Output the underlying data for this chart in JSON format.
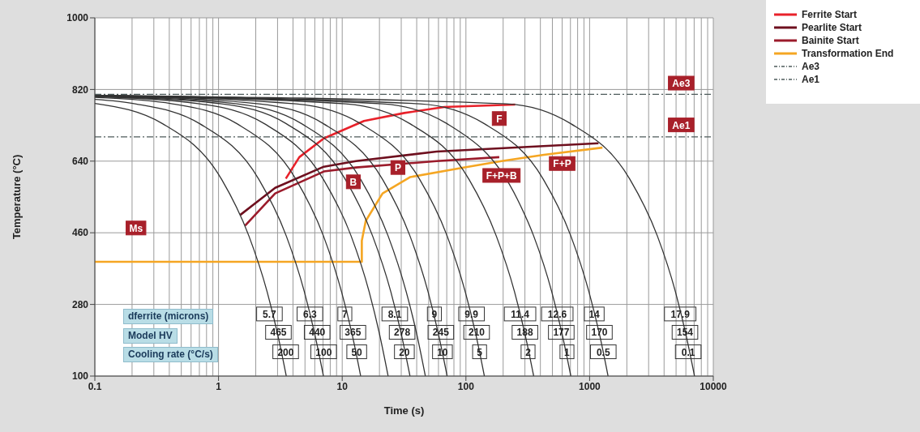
{
  "chart_data": {
    "type": "line",
    "xlabel": "Time (s)",
    "ylabel": "Temperature (°C)",
    "log": "x",
    "grid": true,
    "legend": "top right",
    "marker": "none",
    "xlim": [
      0.1,
      10000
    ],
    "xticks": [
      0.1,
      1,
      10,
      100,
      1000,
      10000
    ],
    "ylim": [
      100,
      1000
    ],
    "yticks": [
      100,
      280,
      460,
      640,
      820,
      1000
    ],
    "series": [
      {
        "name": "Ferrite Start",
        "color": "#e8212a",
        "line_style": "solid",
        "x": [
          3.5,
          4.5,
          7.1,
          15,
          31.8,
          67,
          250
        ],
        "values": [
          596,
          650,
          697,
          741,
          761,
          776,
          782
        ]
      },
      {
        "name": "Pearlite Start",
        "color": "#6e0f1e",
        "line_style": "solid",
        "x": [
          1.5,
          2.87,
          7.1,
          12.9,
          58,
          1180
        ],
        "values": [
          505,
          573,
          626,
          640,
          664,
          685
        ]
      },
      {
        "name": "Bainite Start",
        "color": "#9b1b2b",
        "line_style": "solid",
        "x": [
          1.64,
          2.87,
          7.1,
          12.9,
          58,
          186
        ],
        "values": [
          478,
          559,
          614,
          624,
          640,
          650
        ]
      },
      {
        "name": "Transformation End",
        "color": "#f5a623",
        "line_style": "solid",
        "x": [
          0.1,
          14.4,
          14.4,
          15.5,
          21.2,
          35.5,
          95.7,
          194,
          427,
          1270
        ],
        "values": [
          387,
          387,
          440,
          490,
          559,
          600,
          624,
          640,
          656,
          674
        ]
      },
      {
        "name": "Ae3",
        "color": "#4d5b5b",
        "line_style": "dashed",
        "x": [
          0.1,
          10000
        ],
        "values": [
          808,
          808
        ]
      },
      {
        "name": "Ae1",
        "color": "#4d5b5b",
        "line_style": "dashed",
        "x": [
          0.1,
          10000
        ],
        "values": [
          701,
          701
        ]
      },
      {
        "color": "#333333",
        "line_style": "solid",
        "x": [
          0.1,
          0.353,
          1.06,
          1.76,
          2.47,
          3.0,
          3.53
        ],
        "values": [
          785,
          734,
          594,
          452,
          312,
          206,
          100
        ]
      },
      {
        "color": "#333333",
        "line_style": "solid",
        "x": [
          0.1,
          0.212,
          0.705,
          2.12,
          3.53,
          4.94,
          5.99,
          7.05
        ],
        "values": [
          795,
          784,
          734,
          594,
          452,
          312,
          206,
          100
        ]
      },
      {
        "color": "#333333",
        "line_style": "solid",
        "x": [
          0.1,
          0.423,
          1.41,
          4.23,
          7.05,
          9.87,
          12.0,
          14.1
        ],
        "values": [
          800,
          784,
          734,
          594,
          452,
          312,
          206,
          100
        ]
      },
      {
        "color": "#333333",
        "line_style": "solid",
        "x": [
          0.1,
          0.705,
          2.35,
          7.05,
          11.8,
          16.5,
          20.0,
          23.5
        ],
        "values": [
          802,
          784,
          734,
          594,
          452,
          312,
          206,
          100
        ]
      },
      {
        "color": "#333333",
        "line_style": "solid",
        "x": [
          0.1,
          1.06,
          3.53,
          10.6,
          17.6,
          24.7,
          30.0,
          35.3
        ],
        "values": [
          803,
          784,
          734,
          594,
          452,
          312,
          206,
          100
        ]
      },
      {
        "color": "#333333",
        "line_style": "solid",
        "x": [
          0.1,
          1.41,
          4.7,
          14.1,
          23.5,
          32.9,
          40.0,
          47.0
        ],
        "values": [
          804,
          784,
          734,
          594,
          452,
          312,
          206,
          100
        ]
      },
      {
        "color": "#333333",
        "line_style": "solid",
        "x": [
          0.1,
          2.12,
          7.05,
          21.2,
          35.3,
          49.4,
          59.9,
          70.5
        ],
        "values": [
          805,
          784,
          734,
          594,
          452,
          312,
          206,
          100
        ]
      },
      {
        "color": "#333333",
        "line_style": "solid",
        "x": [
          0.1,
          4.23,
          14.1,
          42.3,
          70.5,
          98.7,
          120,
          141
        ],
        "values": [
          805,
          784,
          734,
          594,
          452,
          312,
          206,
          100
        ]
      },
      {
        "color": "#333333",
        "line_style": "solid",
        "x": [
          0.1,
          10.6,
          35.3,
          106,
          176,
          247,
          300,
          353
        ],
        "values": [
          805,
          784,
          734,
          594,
          452,
          312,
          206,
          100
        ]
      },
      {
        "color": "#333333",
        "line_style": "solid",
        "x": [
          0.1,
          21.2,
          70.5,
          260,
          353,
          494,
          599,
          705
        ],
        "values": [
          805,
          784,
          734,
          545,
          452,
          312,
          206,
          100
        ]
      },
      {
        "color": "#333333",
        "line_style": "solid",
        "x": [
          0.1,
          42.3,
          141,
          423,
          705,
          987,
          1200,
          1410
        ],
        "values": [
          805,
          784,
          734,
          594,
          452,
          312,
          206,
          100
        ]
      },
      {
        "color": "#333333",
        "line_style": "solid",
        "x": [
          0.1,
          212,
          705,
          2120,
          3530,
          4940,
          5990,
          7050
        ],
        "values": [
          805,
          784,
          734,
          594,
          452,
          312,
          206,
          100
        ]
      }
    ],
    "annotations": [
      {
        "text": "F",
        "x": 186,
        "y": 747
      },
      {
        "text": "B",
        "x": 12.3,
        "y": 588
      },
      {
        "text": "P",
        "x": 28.2,
        "y": 624
      },
      {
        "text": "F+P+B",
        "x": 194,
        "y": 604
      },
      {
        "text": "F+P",
        "x": 600,
        "y": 634
      },
      {
        "text": "Ms",
        "x": 0.215,
        "y": 472
      },
      {
        "text": "Ae3",
        "x": 5500,
        "y": 836
      },
      {
        "text": "Ae1",
        "x": 5500,
        "y": 731
      },
      "dferrite (microns)",
      "Model HV",
      "Cooling rate (°C/s)",
      {
        "text": "5.7",
        "x": 2.58,
        "y": 256
      },
      {
        "text": "6.3",
        "x": 5.48,
        "y": 256
      },
      {
        "text": "7",
        "x": 10.5,
        "y": 256
      },
      {
        "text": "8.1",
        "x": 26.6,
        "y": 256
      },
      {
        "text": "9",
        "x": 55.6,
        "y": 256
      },
      {
        "text": "9.9",
        "x": 111,
        "y": 256
      },
      {
        "text": "11.4",
        "x": 274,
        "y": 256
      },
      {
        "text": "12.6",
        "x": 548,
        "y": 256
      },
      {
        "text": "14",
        "x": 1090,
        "y": 256
      },
      {
        "text": "17.9",
        "x": 5400,
        "y": 256
      },
      {
        "text": "465",
        "x": 3.05,
        "y": 210
      },
      {
        "text": "440",
        "x": 6.27,
        "y": 210
      },
      {
        "text": "365",
        "x": 12.2,
        "y": 210
      },
      {
        "text": "278",
        "x": 30.5,
        "y": 210
      },
      {
        "text": "245",
        "x": 62.7,
        "y": 210
      },
      {
        "text": "210",
        "x": 122,
        "y": 210
      },
      {
        "text": "188",
        "x": 300,
        "y": 210
      },
      {
        "text": "177",
        "x": 590,
        "y": 210
      },
      {
        "text": "170",
        "x": 1200,
        "y": 210
      },
      {
        "text": "154",
        "x": 5900,
        "y": 210
      },
      {
        "text": "200",
        "x": 3.49,
        "y": 161
      },
      {
        "text": "100",
        "x": 7.08,
        "y": 161
      },
      {
        "text": "50",
        "x": 13.1,
        "y": 161
      },
      {
        "text": "20",
        "x": 31.8,
        "y": 161
      },
      {
        "text": "10",
        "x": 64.6,
        "y": 161
      },
      {
        "text": "5",
        "x": 129,
        "y": 161
      },
      {
        "text": "2",
        "x": 318,
        "y": 161
      },
      {
        "text": "1",
        "x": 656,
        "y": 161
      },
      {
        "text": "0.5",
        "x": 1290,
        "y": 161
      },
      {
        "text": "0.1",
        "x": 6270,
        "y": 161
      }
    ]
  }
}
